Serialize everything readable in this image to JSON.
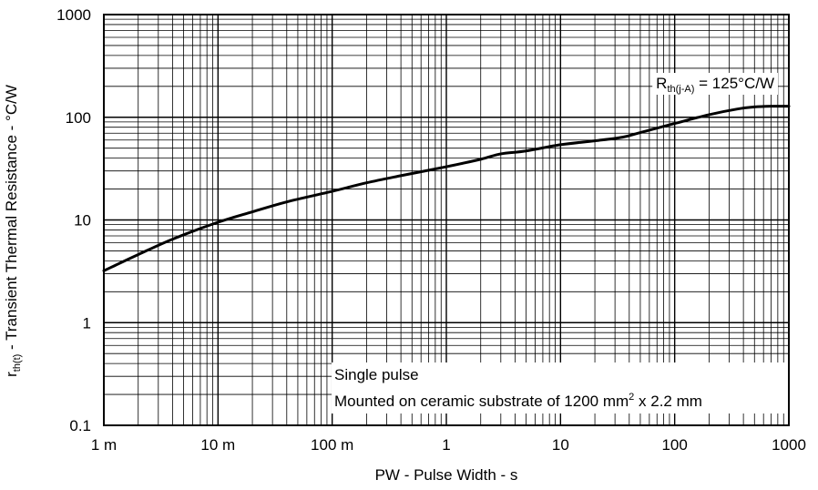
{
  "chart_data": {
    "type": "line",
    "scale": {
      "x": "log",
      "y": "log"
    },
    "xlim": [
      0.001,
      1000
    ],
    "ylim": [
      0.1,
      1000
    ],
    "grid": true,
    "xlabel": "PW - Pulse Width - s",
    "ylabel": {
      "main": "r",
      "sub": "th(t)",
      "rest": " - Transient Thermal Resistance - °C/W"
    },
    "x_tick_labels": [
      "1 m",
      "10 m",
      "100 m",
      "1",
      "10",
      "100",
      "1000"
    ],
    "y_tick_labels": [
      "0.1",
      "1",
      "10",
      "100",
      "1000"
    ],
    "series": [
      {
        "x": [
          0.001,
          0.002,
          0.004,
          0.01,
          0.02,
          0.04,
          0.1,
          0.2,
          0.4,
          1,
          2,
          3,
          5,
          10,
          20,
          35,
          50,
          100,
          200,
          350,
          500,
          700,
          1000
        ],
        "y": [
          3.2,
          4.6,
          6.5,
          9.5,
          12,
          15,
          19,
          23,
          27,
          33,
          39,
          44,
          47,
          54,
          59,
          64,
          71,
          87,
          106,
          120,
          126,
          128,
          128
        ]
      }
    ],
    "annotations": {
      "rth": {
        "main": "R",
        "sub": "th(j-A)",
        "rest": " = 125°C/W"
      },
      "single_pulse": "Single pulse",
      "mounted": {
        "main": "Mounted on ceramic substrate of  1200 mm",
        "sup": "2",
        "rest": " x 2.2 mm"
      }
    }
  }
}
